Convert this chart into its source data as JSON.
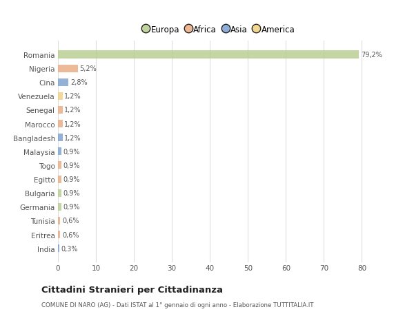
{
  "countries": [
    "Romania",
    "Nigeria",
    "Cina",
    "Venezuela",
    "Senegal",
    "Marocco",
    "Bangladesh",
    "Malaysia",
    "Togo",
    "Egitto",
    "Bulgaria",
    "Germania",
    "Tunisia",
    "Eritrea",
    "India"
  ],
  "values": [
    79.2,
    5.2,
    2.8,
    1.2,
    1.2,
    1.2,
    1.2,
    0.9,
    0.9,
    0.9,
    0.9,
    0.9,
    0.6,
    0.6,
    0.3
  ],
  "labels": [
    "79,2%",
    "5,2%",
    "2,8%",
    "1,2%",
    "1,2%",
    "1,2%",
    "1,2%",
    "0,9%",
    "0,9%",
    "0,9%",
    "0,9%",
    "0,9%",
    "0,6%",
    "0,6%",
    "0,3%"
  ],
  "continents": [
    "Europa",
    "Africa",
    "Asia",
    "America",
    "Africa",
    "Africa",
    "Asia",
    "Asia",
    "Africa",
    "Africa",
    "Europa",
    "Europa",
    "Africa",
    "Africa",
    "Asia"
  ],
  "continent_colors": {
    "Europa": "#b5cc8e",
    "Africa": "#e8a97e",
    "Asia": "#7a9fcd",
    "America": "#f0d080"
  },
  "legend_items": [
    "Europa",
    "Africa",
    "Asia",
    "America"
  ],
  "legend_colors": [
    "#b5cc8e",
    "#e8a97e",
    "#7a9fcd",
    "#f0d080"
  ],
  "xlim": [
    0,
    85
  ],
  "xticks": [
    0,
    10,
    20,
    30,
    40,
    50,
    60,
    70,
    80
  ],
  "title": "Cittadini Stranieri per Cittadinanza",
  "subtitle": "COMUNE DI NARO (AG) - Dati ISTAT al 1° gennaio di ogni anno - Elaborazione TUTTITALIA.IT",
  "background_color": "#ffffff",
  "plot_bg_color": "#ffffff",
  "grid_color": "#dddddd",
  "text_color": "#555555",
  "bar_height": 0.55
}
